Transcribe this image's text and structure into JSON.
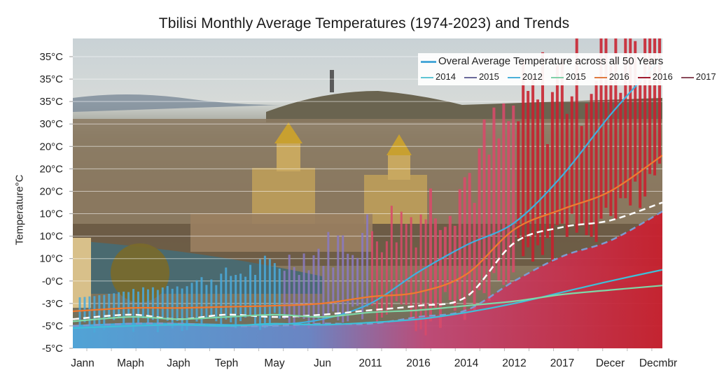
{
  "chart_data": {
    "type": "line",
    "title": "Tbilisi Monthly Average Temperatures (1974-2023) and Trends",
    "xlabel": "",
    "ylabel": "Temperature°C",
    "y_tick_labels": [
      "35°C",
      "35°C",
      "35°C",
      "30°C",
      "20°C",
      "20°C",
      "20°C",
      "10°C",
      "10°C",
      "10°C",
      "-0°C",
      "-3°C",
      "-5°C",
      "-5°C"
    ],
    "x_tick_labels": [
      "Jann",
      "Maph",
      "Japh",
      "Teph",
      "May",
      "Jun",
      "2011",
      "2016",
      "2014",
      "2012",
      "2017",
      "Decer",
      "Decmbr"
    ],
    "ylim_index": [
      0,
      13
    ],
    "grid": true,
    "background_image": "Tbilisi cityscape photo (cathedrals, river Kura, hills) behind the plot, overlaid by a blue-to-red gradient area",
    "legend": {
      "placement": "top-right",
      "entries": [
        {
          "label": "Overal Average Temperature across all 50 Years",
          "color": "#4aa8d8"
        },
        {
          "label": "2014",
          "color": "#5ec4d4"
        },
        {
          "label": "2015",
          "color": "#6a6a9a"
        },
        {
          "label": "2012",
          "color": "#4ab0d8"
        },
        {
          "label": "2015",
          "color": "#7fd0a8"
        },
        {
          "label": "2016",
          "color": "#e07a40"
        },
        {
          "label": "2016",
          "color": "#a01c30"
        },
        {
          "label": "2017",
          "color": "#8a4a5a"
        }
      ]
    },
    "series": [
      {
        "name": "Overal Average Temperature across all 50 Years",
        "color": "#3fb0e0",
        "style": "solid",
        "y_index": [
          12.0,
          11.9,
          11.9,
          11.95,
          11.95,
          11.7,
          11.0,
          9.6,
          8.4,
          7.4,
          5.3,
          2.6,
          0.0
        ]
      },
      {
        "name": "2016",
        "color": "#f07a30",
        "style": "solid",
        "y_index": [
          11.35,
          11.2,
          11.2,
          11.15,
          11.1,
          11.0,
          10.7,
          10.5,
          9.7,
          7.7,
          6.8,
          6.0,
          4.4
        ]
      },
      {
        "name": "2014",
        "color": "#ffffff",
        "style": "dashed",
        "y_index": [
          11.7,
          11.5,
          11.7,
          11.5,
          11.6,
          11.5,
          11.3,
          11.1,
          10.7,
          8.3,
          7.6,
          7.3,
          6.5
        ]
      },
      {
        "name": "2015",
        "color": "#7c9ad0",
        "style": "dashed",
        "y_index": [
          12.0,
          11.9,
          11.9,
          12.0,
          12.0,
          11.9,
          11.9,
          11.6,
          11.3,
          10.0,
          8.9,
          8.2,
          6.9
        ]
      },
      {
        "name": "2012",
        "color": "#3ec0d8",
        "style": "solid",
        "y_index": [
          12.1,
          12.0,
          11.95,
          12.0,
          11.9,
          11.95,
          11.85,
          11.7,
          11.4,
          11.0,
          10.5,
          10.0,
          9.5
        ]
      },
      {
        "name": "2015 (green)",
        "color": "#7fd8a8",
        "style": "solid",
        "y_index": [
          11.8,
          11.6,
          11.7,
          11.6,
          11.5,
          11.6,
          11.4,
          11.3,
          11.1,
          10.9,
          10.6,
          10.4,
          10.2
        ]
      }
    ],
    "monthly_spikes": {
      "description": "dense vertical bars of monthly values, blue/purple on the left transitioning to red on the right, heights increasing left to right",
      "colors": [
        "#4aa8d8",
        "#8a7ac0",
        "#d84a6a",
        "#c8202e"
      ]
    }
  }
}
